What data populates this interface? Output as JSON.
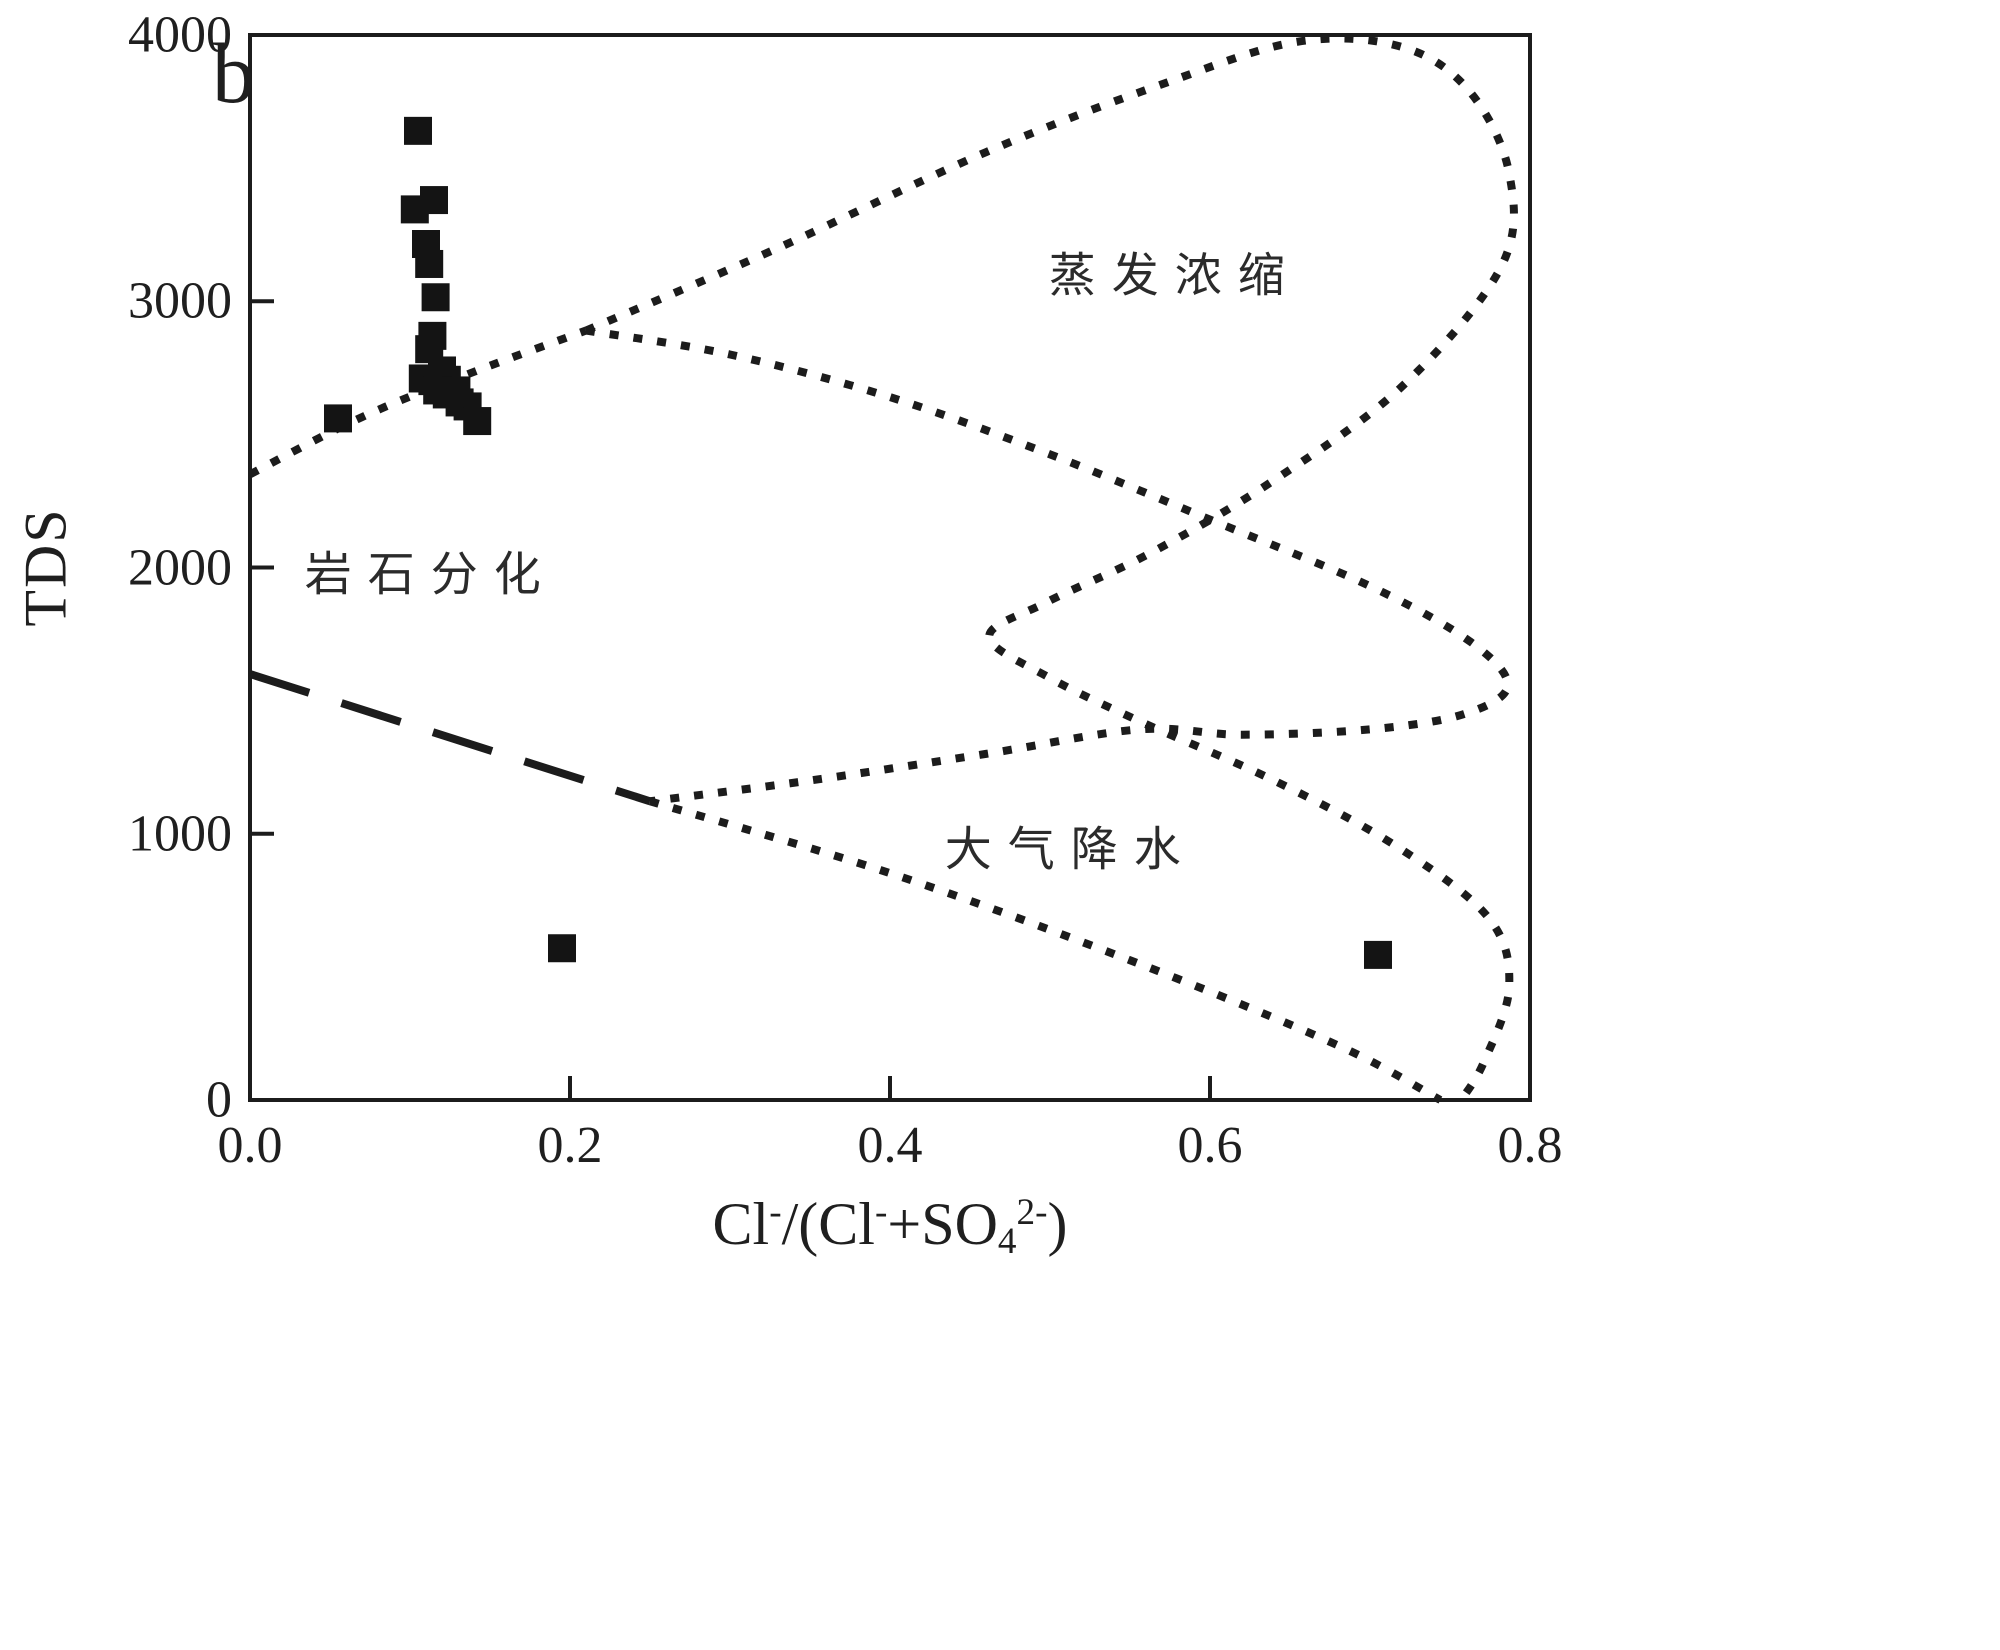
{
  "figure": {
    "panel_label": "b",
    "background_color": "#ffffff",
    "line_color": "#1c1c1c",
    "text_color": "#1f1f1f"
  },
  "chart_data": {
    "type": "scatter",
    "title": "",
    "xlabel": "Cl⁻/(Cl⁻+SO₄²⁻)",
    "xlabel_parts": {
      "p0": "Cl",
      "p1": "-",
      "p2": "/(Cl",
      "p3": "-",
      "p4": "+SO",
      "p5": "4",
      "p6": "2-",
      "p7": ")"
    },
    "ylabel": "TDS",
    "xlim": [
      0.0,
      0.8
    ],
    "ylim": [
      0,
      4000
    ],
    "grid": false,
    "legend": "none",
    "x_ticks": [
      {
        "value": 0.0,
        "label": "0.0"
      },
      {
        "value": 0.2,
        "label": "0.2"
      },
      {
        "value": 0.4,
        "label": "0.4"
      },
      {
        "value": 0.6,
        "label": "0.6"
      },
      {
        "value": 0.8,
        "label": "0.8"
      }
    ],
    "y_ticks": [
      {
        "value": 0,
        "label": "0"
      },
      {
        "value": 1000,
        "label": "1000"
      },
      {
        "value": 2000,
        "label": "2000"
      },
      {
        "value": 3000,
        "label": "3000"
      },
      {
        "value": 4000,
        "label": "4000"
      }
    ],
    "series": [
      {
        "name": "water-samples",
        "marker": "filled-square",
        "color": "#141414",
        "points": [
          [
            0.105,
            3640
          ],
          [
            0.103,
            3345
          ],
          [
            0.115,
            3380
          ],
          [
            0.11,
            3215
          ],
          [
            0.112,
            3140
          ],
          [
            0.116,
            3015
          ],
          [
            0.114,
            2870
          ],
          [
            0.112,
            2820
          ],
          [
            0.108,
            2710
          ],
          [
            0.114,
            2700
          ],
          [
            0.12,
            2740
          ],
          [
            0.123,
            2705
          ],
          [
            0.117,
            2665
          ],
          [
            0.123,
            2650
          ],
          [
            0.129,
            2665
          ],
          [
            0.131,
            2620
          ],
          [
            0.136,
            2605
          ],
          [
            0.142,
            2550
          ],
          [
            0.055,
            2560
          ],
          [
            0.195,
            570
          ],
          [
            0.705,
            545
          ]
        ]
      }
    ],
    "region_labels": [
      {
        "id": "evaporation-concentration",
        "label": "蒸发浓缩",
        "x": 0.578,
        "y": 3115
      },
      {
        "id": "rock-weathering",
        "label": "岩石分化",
        "x": 0.113,
        "y": 1990
      },
      {
        "id": "atmospheric-precipitation",
        "label": "大气降水",
        "x": 0.513,
        "y": 958
      }
    ],
    "boundaries": [
      {
        "name": "rock-weathering-precipitation-divider",
        "style": "longdash",
        "smooth": false,
        "points": [
          [
            0.0,
            1600
          ],
          [
            0.25,
            1122
          ]
        ]
      },
      {
        "name": "precipitation-left-boundary",
        "style": "dotted",
        "smooth": true,
        "points": [
          [
            0.25,
            1122
          ],
          [
            0.4,
            852
          ],
          [
            0.55,
            525
          ],
          [
            0.68,
            205
          ],
          [
            0.744,
            0
          ]
        ]
      },
      {
        "name": "evaporation-inner-boundary",
        "style": "dotted",
        "smooth": true,
        "points": [
          [
            0.21,
            2890
          ],
          [
            0.3,
            2800
          ],
          [
            0.4,
            2640
          ],
          [
            0.5,
            2425
          ],
          [
            0.6,
            2180
          ],
          [
            0.7,
            1930
          ],
          [
            0.763,
            1720
          ],
          [
            0.786,
            1555
          ],
          [
            0.758,
            1448
          ],
          [
            0.7,
            1392
          ],
          [
            0.62,
            1372
          ],
          [
            0.556,
            1392
          ],
          [
            0.46,
            1300
          ],
          [
            0.35,
            1200
          ],
          [
            0.25,
            1122
          ]
        ]
      },
      {
        "name": "evaporation-loop-outline",
        "style": "dotted",
        "smooth": true,
        "points": [
          [
            0.21,
            2890
          ],
          [
            0.33,
            3200
          ],
          [
            0.46,
            3560
          ],
          [
            0.57,
            3815
          ],
          [
            0.655,
            3975
          ],
          [
            0.72,
            3955
          ],
          [
            0.762,
            3790
          ],
          [
            0.787,
            3480
          ],
          [
            0.782,
            3130
          ],
          [
            0.72,
            2680
          ],
          [
            0.638,
            2320
          ],
          [
            0.563,
            2055
          ],
          [
            0.498,
            1870
          ],
          [
            0.462,
            1740
          ],
          [
            0.5,
            1585
          ],
          [
            0.557,
            1420
          ],
          [
            0.64,
            1200
          ],
          [
            0.716,
            955
          ],
          [
            0.774,
            685
          ],
          [
            0.787,
            425
          ],
          [
            0.771,
            140
          ],
          [
            0.757,
            0
          ]
        ]
      },
      {
        "name": "rock-weathering-evaporation-boundary",
        "style": "dotted",
        "smooth": true,
        "points": [
          [
            0.0,
            2350
          ],
          [
            0.07,
            2565
          ],
          [
            0.14,
            2735
          ],
          [
            0.21,
            2890
          ]
        ]
      }
    ]
  }
}
